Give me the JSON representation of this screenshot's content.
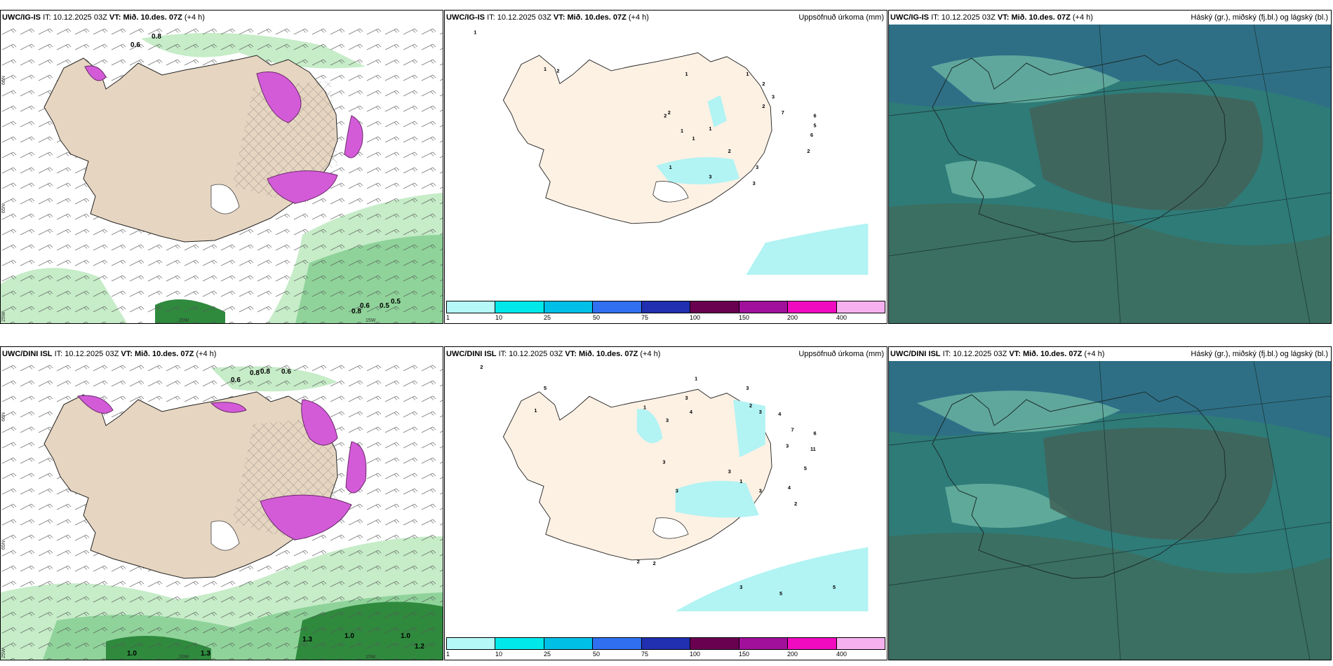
{
  "panels": [
    {
      "model": "UWC/IG-IS",
      "it_label": "IT:",
      "it": "10.12.2025 03Z",
      "vt_label": "VT:",
      "vt": "Mið. 10.des. 07Z",
      "lead": "(+4 h)",
      "right_title": "",
      "labels": [
        "0.6",
        "0.8",
        "0.5",
        "0.6",
        "0.8",
        "0.5"
      ],
      "lat_labels": [
        "66N",
        "65N",
        "64N"
      ],
      "lon_labels": [
        "25W",
        "20W",
        "15W"
      ]
    },
    {
      "model": "UWC/IG-IS",
      "it_label": "IT:",
      "it": "10.12.2025 03Z",
      "vt_label": "VT:",
      "vt": "Mið. 10.des. 07Z",
      "lead": "(+4 h)",
      "right_title": "Uppsöfnuð úrkoma (mm)",
      "labels": [
        "1",
        "1",
        "2",
        "1",
        "1",
        "2",
        "3",
        "7",
        "2",
        "1",
        "2",
        "1",
        "1",
        "6",
        "5",
        "6",
        "2",
        "2",
        "1",
        "3",
        "3",
        "3",
        "2"
      ]
    },
    {
      "model": "UWC/IG-IS",
      "it_label": "IT:",
      "it": "10.12.2025 03Z",
      "vt_label": "VT:",
      "vt": "Mið. 10.des. 07Z",
      "lead": "(+4 h)",
      "right_title": "Háský (gr.), miðský (fj.bl.) og lágský (bl.)",
      "labels": []
    },
    {
      "model": "UWC/DINI ISL",
      "it_label": "IT:",
      "it": "10.12.2025 03Z",
      "vt_label": "VT:",
      "vt": "Mið. 10.des. 07Z",
      "lead": "(+4 h)",
      "right_title": "",
      "labels": [
        "0.6",
        "0.8",
        "0.6",
        "0.8",
        "1.0",
        "1.3",
        "1.0",
        "1.2",
        "1.0",
        "1.3"
      ],
      "lat_labels": [
        "66N",
        "65N",
        "64N"
      ],
      "lon_labels": [
        "25W",
        "20W",
        "15W"
      ]
    },
    {
      "model": "UWC/DINI ISL",
      "it_label": "IT:",
      "it": "10.12.2025 03Z",
      "vt_label": "VT:",
      "vt": "Mið. 10.des. 07Z",
      "lead": "(+4 h)",
      "right_title": "Uppsöfnuð úrkoma (mm)",
      "labels": [
        "2",
        "1",
        "5",
        "1",
        "3",
        "4",
        "3",
        "2",
        "3",
        "4",
        "1",
        "3",
        "7",
        "3",
        "6",
        "11",
        "3",
        "3",
        "1",
        "3",
        "5",
        "4",
        "2",
        "3",
        "2",
        "2",
        "3",
        "5",
        "5"
      ]
    },
    {
      "model": "UWC/DINI ISL",
      "it_label": "IT:",
      "it": "10.12.2025 03Z",
      "vt_label": "VT:",
      "vt": "Mið. 10.des. 07Z",
      "lead": "(+4 h)",
      "right_title": "Háský (gr.), miðský (fj.bl.) og lágský (bl.)",
      "labels": []
    }
  ],
  "colorbar": {
    "ticks": [
      "1",
      "10",
      "25",
      "50",
      "75",
      "100",
      "150",
      "200",
      "400"
    ],
    "colors": [
      "#b4f8f8",
      "#00e8ea",
      "#00bfe6",
      "#2f6ff0",
      "#2030b0",
      "#6a0050",
      "#a0109a",
      "#f00ac0",
      "#f6b0f0"
    ]
  },
  "colors": {
    "land": "#e6d5c1",
    "precip_land": "#fdf1e4",
    "precip_light": "#b2f3f3",
    "green_light": "#c6ecc8",
    "green_mid": "#8fd39a",
    "green_dark": "#2f8a3e",
    "purple": "#d35bd8",
    "cloud_base": "#2e7b78",
    "cloud_mid": "#6cb5a2",
    "cloud_dark": "#41645a"
  }
}
